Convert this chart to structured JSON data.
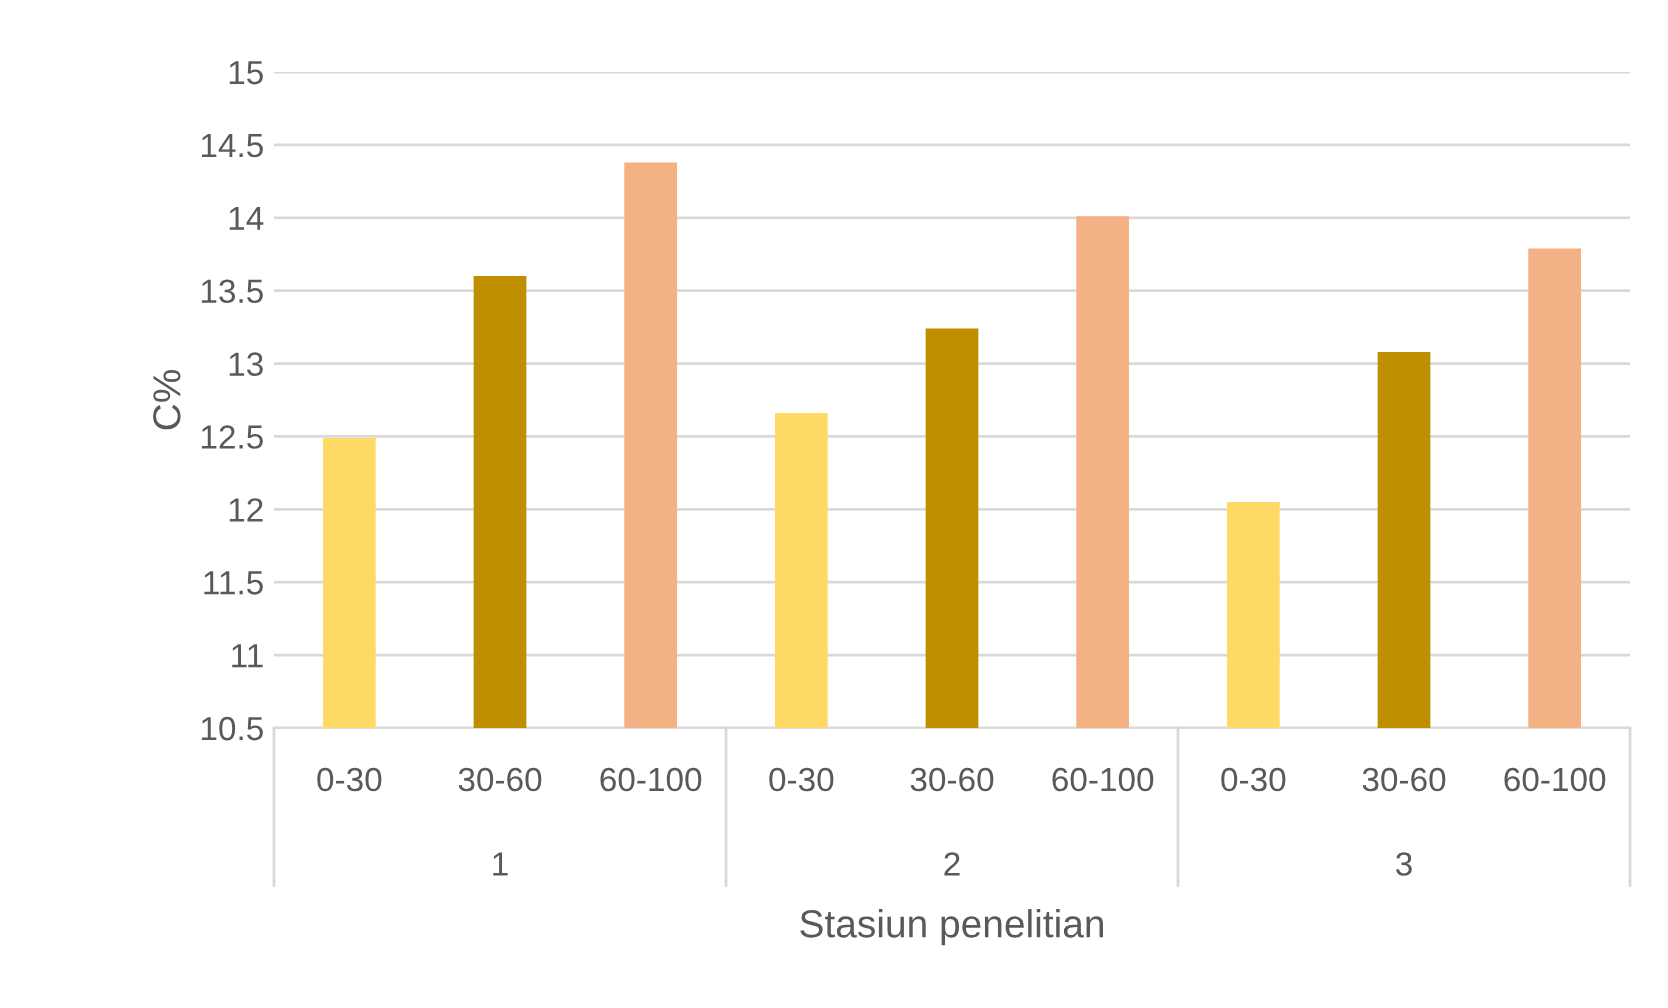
{
  "chart_data": {
    "type": "bar",
    "xlabel": "Stasiun penelitian",
    "ylabel": "C%",
    "categories": [
      "0-30",
      "30-60",
      "60-100",
      "0-30",
      "30-60",
      "60-100",
      "0-30",
      "30-60",
      "60-100"
    ],
    "values": [
      12.49,
      13.6,
      14.38,
      12.66,
      13.24,
      14.01,
      12.05,
      13.08,
      13.79
    ],
    "colors": [
      "#ffd966",
      "#bf8f00",
      "#f4b183",
      "#ffd966",
      "#bf8f00",
      "#f4b183",
      "#ffd966",
      "#bf8f00",
      "#f4b183"
    ],
    "annotations": [
      "1",
      "2",
      "3"
    ],
    "ylim": [
      10.5,
      15
    ],
    "yticks": [
      10.5,
      11,
      11.5,
      12,
      12.5,
      13,
      13.5,
      14,
      14.5,
      15
    ],
    "grid": "y"
  }
}
